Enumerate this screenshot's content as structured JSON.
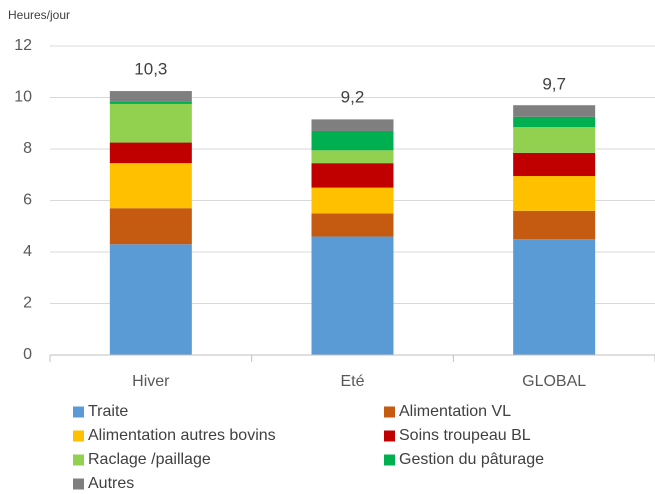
{
  "chart_data": {
    "type": "stacked_bar",
    "y_axis_label": "Heures/jour",
    "categories": [
      "Hiver",
      "Eté",
      "GLOBAL"
    ],
    "series": [
      {
        "name": "Traite",
        "color": "#5B9BD5",
        "values": [
          4.3,
          4.6,
          4.5
        ]
      },
      {
        "name": "Alimentation VL",
        "color": "#C55A11",
        "values": [
          1.4,
          0.9,
          1.1
        ]
      },
      {
        "name": "Alimentation autres bovins",
        "color": "#FFC000",
        "values": [
          1.75,
          1.0,
          1.35
        ]
      },
      {
        "name": "Soins troupeau BL",
        "color": "#C00000",
        "values": [
          0.8,
          0.95,
          0.9
        ]
      },
      {
        "name": "Raclage /paillage",
        "color": "#92D050",
        "values": [
          1.5,
          0.5,
          1.0
        ]
      },
      {
        "name": "Gestion du pâturage",
        "color": "#00B050",
        "values": [
          0.1,
          0.75,
          0.4
        ]
      },
      {
        "name": "Autres",
        "color": "#7F7F7F",
        "values": [
          0.4,
          0.45,
          0.45
        ]
      }
    ],
    "total_values": [
      10.3,
      9.2,
      9.7
    ],
    "total_labels": [
      "10,3",
      "9,2",
      "9,7"
    ],
    "ylim": [
      0,
      12
    ],
    "yticks": [
      0,
      2,
      4,
      6,
      8,
      10,
      12
    ],
    "grid": true,
    "legend": "bottom"
  }
}
